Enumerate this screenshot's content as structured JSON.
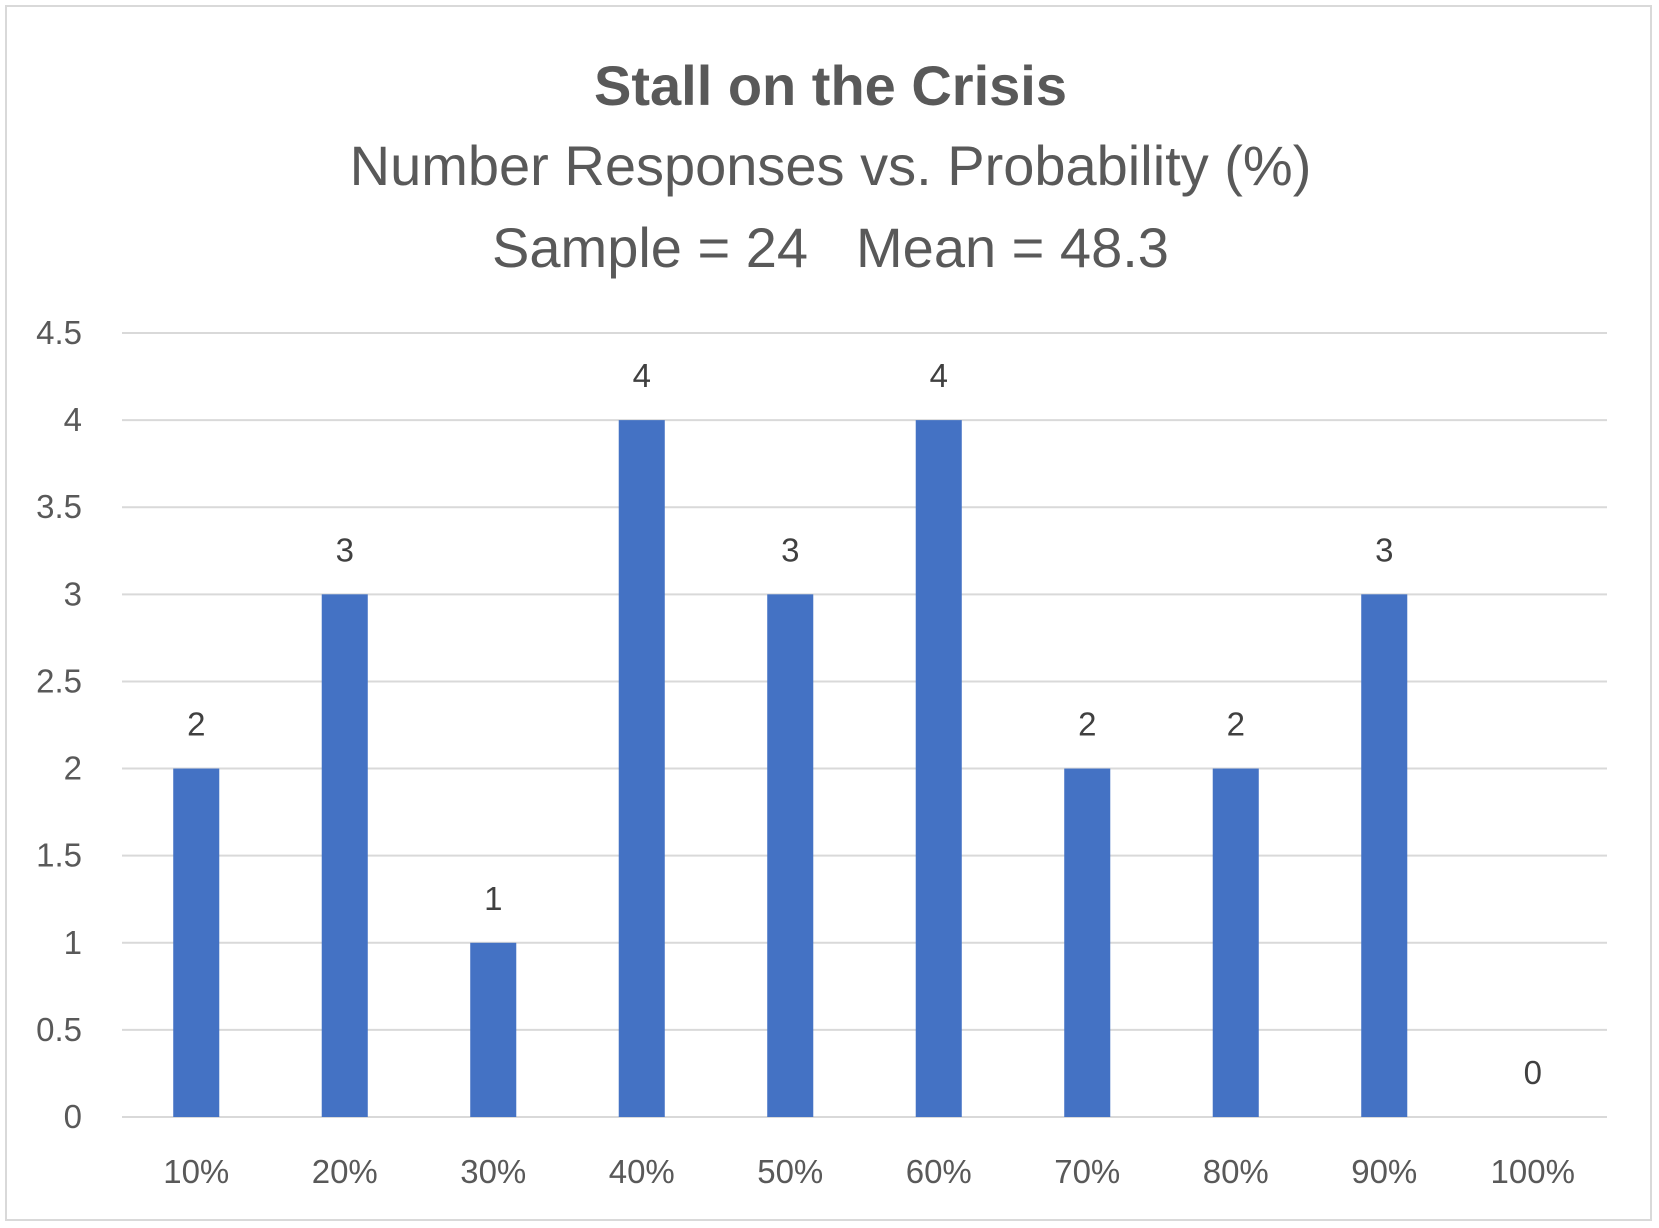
{
  "chart_data": {
    "type": "bar",
    "title": "Stall on the Crisis",
    "subtitle": "Number Responses vs. Probability (%)",
    "stats": {
      "sample_label": "Sample = 24",
      "mean_label": "Mean = 48.3"
    },
    "categories": [
      "10%",
      "20%",
      "30%",
      "40%",
      "50%",
      "60%",
      "70%",
      "80%",
      "90%",
      "100%"
    ],
    "values": [
      2,
      3,
      1,
      4,
      3,
      4,
      2,
      2,
      3,
      0
    ],
    "ylim": [
      0,
      4.5
    ],
    "yticks": [
      "0",
      "0.5",
      "1",
      "1.5",
      "2",
      "2.5",
      "3",
      "3.5",
      "4",
      "4.5"
    ],
    "xlabel": "",
    "ylabel": "",
    "grid": true,
    "data_labels": true,
    "legend": "none",
    "colors": {
      "bar": "#4472C4",
      "grid": "#d9d9d9",
      "text": "#595959"
    }
  }
}
